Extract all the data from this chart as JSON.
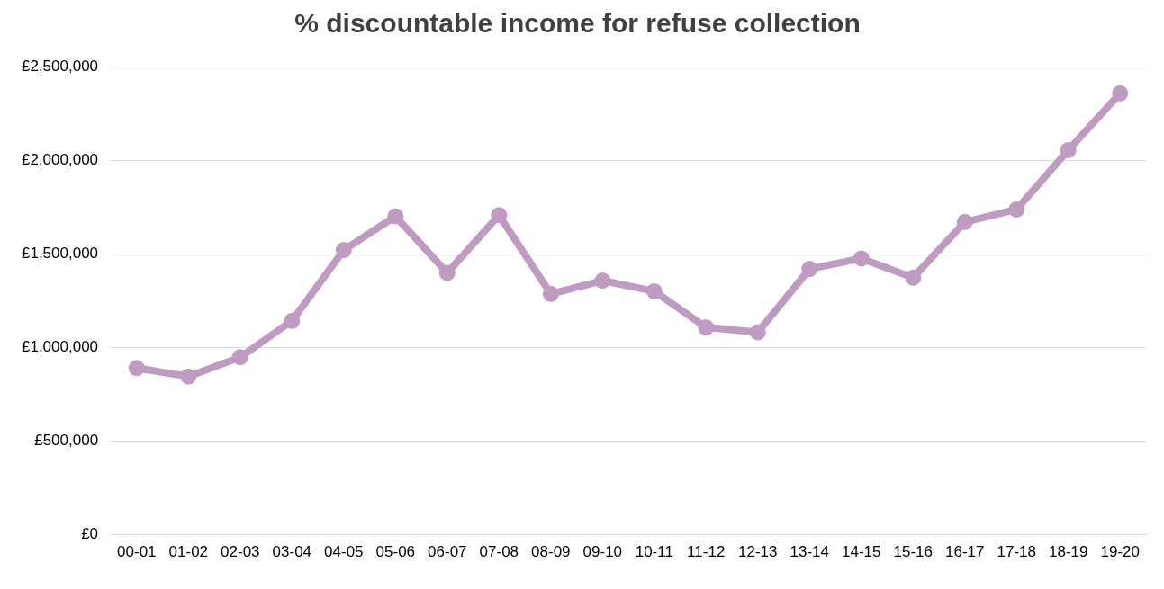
{
  "chart_data": {
    "type": "line",
    "title": "% discountable income for refuse collection",
    "categories": [
      "00-01",
      "01-02",
      "02-03",
      "03-04",
      "04-05",
      "05-06",
      "06-07",
      "07-08",
      "08-09",
      "09-10",
      "10-11",
      "11-12",
      "12-13",
      "13-14",
      "14-15",
      "15-16",
      "16-17",
      "17-18",
      "18-19",
      "19-20"
    ],
    "series": [
      {
        "color": "#bf9bc2",
        "values": [
          890000,
          845000,
          948000,
          1142000,
          1520000,
          1700000,
          1398000,
          1706000,
          1286000,
          1357000,
          1300000,
          1107000,
          1081000,
          1419000,
          1475000,
          1373000,
          1670000,
          1737000,
          2054000,
          2357000
        ]
      }
    ],
    "ylim": [
      0,
      2500000
    ],
    "yticks": [
      {
        "value": 0,
        "label": "£0"
      },
      {
        "value": 500000,
        "label": "£500,000"
      },
      {
        "value": 1000000,
        "label": "£1,000,000"
      },
      {
        "value": 1500000,
        "label": "£1,500,000"
      },
      {
        "value": 2000000,
        "label": "£2,000,000"
      },
      {
        "value": 2500000,
        "label": "£2,500,000"
      }
    ],
    "grid": "y",
    "legend": false,
    "marker": "circle",
    "line_style": "solid"
  }
}
